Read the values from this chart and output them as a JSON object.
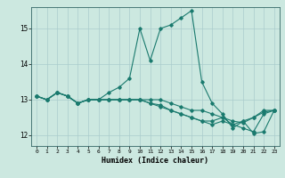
{
  "xlabel": "Humidex (Indice chaleur)",
  "background_color": "#cce8e0",
  "grid_color": "#aacccc",
  "line_color": "#1a7a6e",
  "xlim": [
    -0.5,
    23.5
  ],
  "ylim": [
    11.7,
    15.6
  ],
  "yticks": [
    12,
    13,
    14,
    15
  ],
  "xticks": [
    0,
    1,
    2,
    3,
    4,
    5,
    6,
    7,
    8,
    9,
    10,
    11,
    12,
    13,
    14,
    15,
    16,
    17,
    18,
    19,
    20,
    21,
    22,
    23
  ],
  "series": [
    {
      "x": [
        0,
        1,
        2,
        3,
        4,
        5,
        6,
        7,
        8,
        9,
        10,
        11,
        12,
        13,
        14,
        15,
        16,
        17,
        18,
        19,
        20,
        21,
        22,
        23
      ],
      "y": [
        13.1,
        13.0,
        13.2,
        13.1,
        12.9,
        13.0,
        13.0,
        13.2,
        13.35,
        13.6,
        15.0,
        14.1,
        15.0,
        15.1,
        15.3,
        15.5,
        13.5,
        12.9,
        12.6,
        12.2,
        12.4,
        12.05,
        12.1,
        12.7
      ]
    },
    {
      "x": [
        0,
        1,
        2,
        3,
        4,
        5,
        6,
        7,
        8,
        9,
        10,
        11,
        12,
        13,
        14,
        15,
        16,
        17,
        18,
        19,
        20,
        21,
        22,
        23
      ],
      "y": [
        13.1,
        13.0,
        13.2,
        13.1,
        12.9,
        13.0,
        13.0,
        13.0,
        13.0,
        13.0,
        13.0,
        13.0,
        13.0,
        12.9,
        12.8,
        12.7,
        12.7,
        12.6,
        12.5,
        12.3,
        12.2,
        12.1,
        12.6,
        12.7
      ]
    },
    {
      "x": [
        0,
        1,
        2,
        3,
        4,
        5,
        6,
        7,
        8,
        9,
        10,
        11,
        12,
        13,
        14,
        15,
        16,
        17,
        18,
        19,
        20,
        21,
        22,
        23
      ],
      "y": [
        13.1,
        13.0,
        13.2,
        13.1,
        12.9,
        13.0,
        13.0,
        13.0,
        13.0,
        13.0,
        13.0,
        12.9,
        12.85,
        12.7,
        12.6,
        12.5,
        12.4,
        12.3,
        12.4,
        12.3,
        12.4,
        12.5,
        12.7,
        12.7
      ]
    },
    {
      "x": [
        0,
        1,
        2,
        3,
        4,
        5,
        6,
        7,
        8,
        9,
        10,
        11,
        12,
        13,
        14,
        15,
        16,
        17,
        18,
        19,
        20,
        21,
        22,
        23
      ],
      "y": [
        13.1,
        13.0,
        13.2,
        13.1,
        12.9,
        13.0,
        13.0,
        13.0,
        13.0,
        13.0,
        13.0,
        12.9,
        12.8,
        12.7,
        12.6,
        12.5,
        12.4,
        12.4,
        12.5,
        12.4,
        12.35,
        12.5,
        12.65,
        12.7
      ]
    }
  ]
}
